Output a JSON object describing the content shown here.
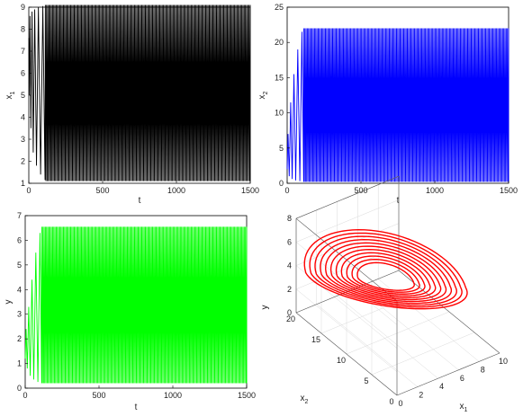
{
  "chart_data": [
    {
      "type": "line",
      "xlabel": "t",
      "ylabel": "x1",
      "ylabel_base": "x",
      "ylabel_sub": "1",
      "xlim": [
        0,
        1500
      ],
      "ylim": [
        1,
        9
      ],
      "xticks": [
        "0",
        "500",
        "1000",
        "1500"
      ],
      "yticks": [
        "1",
        "2",
        "3",
        "4",
        "5",
        "6",
        "7",
        "8",
        "9"
      ],
      "color": "#000000",
      "oscillation": {
        "low": 1.1,
        "high": 9.1,
        "steady_from_t": 100,
        "cycles": 170
      },
      "transient": [
        [
          0,
          7.6
        ],
        [
          3,
          5.0
        ],
        [
          8,
          8.6
        ],
        [
          14,
          3.5
        ],
        [
          22,
          8.8
        ],
        [
          30,
          2.4
        ],
        [
          40,
          8.9
        ],
        [
          52,
          1.8
        ],
        [
          65,
          9.0
        ],
        [
          80,
          1.4
        ],
        [
          95,
          9.05
        ],
        [
          110,
          1.15
        ]
      ]
    },
    {
      "type": "line",
      "xlabel": "t",
      "ylabel": "x2",
      "ylabel_base": "x",
      "ylabel_sub": "2",
      "xlim": [
        0,
        1500
      ],
      "ylim": [
        0,
        25
      ],
      "xticks": [
        "0",
        "500",
        "1000",
        "1500"
      ],
      "yticks": [
        "0",
        "5",
        "10",
        "15",
        "20",
        "25"
      ],
      "color": "#0000ff",
      "oscillation": {
        "low": 0.2,
        "high": 22.0,
        "steady_from_t": 100,
        "cycles": 170
      },
      "transient": [
        [
          0,
          2.0
        ],
        [
          6,
          7.0
        ],
        [
          14,
          1.0
        ],
        [
          24,
          11.5
        ],
        [
          34,
          0.6
        ],
        [
          46,
          15.5
        ],
        [
          58,
          0.4
        ],
        [
          72,
          19.0
        ],
        [
          86,
          0.3
        ],
        [
          100,
          21.5
        ],
        [
          112,
          0.2
        ]
      ]
    },
    {
      "type": "line",
      "xlabel": "t",
      "ylabel": "y",
      "ylabel_base": "y",
      "ylabel_sub": "",
      "xlim": [
        0,
        1500
      ],
      "ylim": [
        0,
        7
      ],
      "xticks": [
        "0",
        "500",
        "1000",
        "1500"
      ],
      "yticks": [
        "0",
        "1",
        "2",
        "3",
        "4",
        "5",
        "6",
        "7"
      ],
      "color": "#00ff00",
      "oscillation": {
        "low": 0.2,
        "high": 6.55,
        "steady_from_t": 100,
        "cycles": 170
      },
      "transient": [
        [
          0,
          1.2
        ],
        [
          6,
          2.4
        ],
        [
          14,
          0.8
        ],
        [
          24,
          3.3
        ],
        [
          34,
          0.5
        ],
        [
          46,
          4.4
        ],
        [
          58,
          0.35
        ],
        [
          72,
          5.5
        ],
        [
          86,
          0.25
        ],
        [
          100,
          6.3
        ],
        [
          112,
          0.2
        ]
      ]
    },
    {
      "type": "scatter",
      "plot3d": true,
      "xlabel": "x1",
      "xlabel_base": "x",
      "xlabel_sub": "1",
      "ylabel": "x2",
      "ylabel_base": "x",
      "ylabel_sub": "2",
      "zlabel": "y",
      "xlim": [
        0,
        10
      ],
      "ylim": [
        0,
        20
      ],
      "zlim": [
        0,
        8
      ],
      "xticks": [
        "0",
        "2",
        "4",
        "6",
        "8",
        "10"
      ],
      "yticks": [
        "0",
        "5",
        "10",
        "15",
        "20"
      ],
      "zticks": [
        "0",
        "2",
        "4",
        "6",
        "8"
      ],
      "grid": true,
      "color": "#ff0000",
      "attractor_center": {
        "x1": 5.3,
        "x2": 15.0,
        "y": 3.6
      }
    }
  ]
}
